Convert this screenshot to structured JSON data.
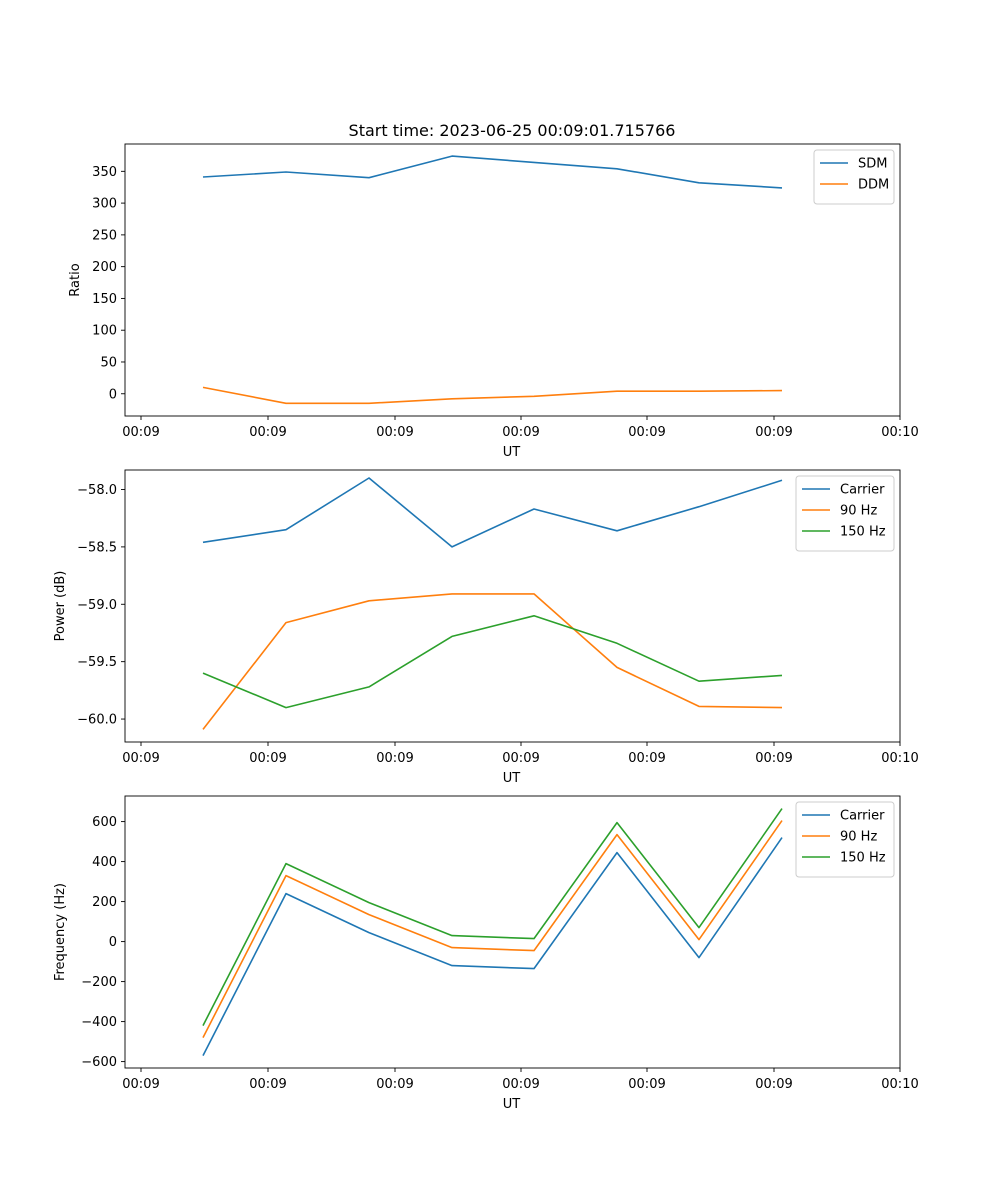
{
  "figure": {
    "title": "Start time: 2023-06-25 00:09:01.715766"
  },
  "chart_data": [
    {
      "type": "line",
      "xlabel": "UT",
      "ylabel": "Ratio",
      "x_tick_labels": [
        "00:09",
        "00:09",
        "00:09",
        "00:09",
        "00:09",
        "00:09",
        "00:09",
        "00:10"
      ],
      "y_ticks": [
        0,
        50,
        100,
        150,
        200,
        250,
        300,
        350
      ],
      "ylim": [
        -35,
        393
      ],
      "grid": false,
      "legend": "upper right",
      "series": [
        {
          "name": "SDM",
          "color": "#1f77b4",
          "values": [
            341,
            349,
            340,
            374,
            364,
            354,
            332,
            324
          ]
        },
        {
          "name": "DDM",
          "color": "#ff7f0e",
          "values": [
            10,
            -15,
            -15,
            -8,
            -4,
            4,
            4,
            5
          ]
        }
      ]
    },
    {
      "type": "line",
      "xlabel": "UT",
      "ylabel": "Power (dB)",
      "x_tick_labels": [
        "00:09",
        "00:09",
        "00:09",
        "00:09",
        "00:09",
        "00:09",
        "00:09",
        "00:10"
      ],
      "y_ticks": [
        -60.0,
        -59.5,
        -59.0,
        -58.5,
        -58.0
      ],
      "y_tick_labels": [
        "−60.0",
        "−59.5",
        "−59.0",
        "−58.5",
        "−58.0"
      ],
      "ylim": [
        -60.2,
        -57.83
      ],
      "grid": false,
      "legend": "upper right",
      "series": [
        {
          "name": "Carrier",
          "color": "#1f77b4",
          "values": [
            -58.46,
            -58.35,
            -57.9,
            -58.5,
            -58.17,
            -58.36,
            -58.15,
            -57.92
          ]
        },
        {
          "name": "90 Hz",
          "color": "#ff7f0e",
          "values": [
            -60.09,
            -59.16,
            -58.97,
            -58.91,
            -58.91,
            -59.55,
            -59.89,
            -59.9
          ]
        },
        {
          "name": "150 Hz",
          "color": "#2ca02c",
          "values": [
            -59.6,
            -59.9,
            -59.72,
            -59.28,
            -59.1,
            -59.34,
            -59.67,
            -59.62
          ]
        }
      ]
    },
    {
      "type": "line",
      "xlabel": "UT",
      "ylabel": "Frequency (Hz)",
      "x_tick_labels": [
        "00:09",
        "00:09",
        "00:09",
        "00:09",
        "00:09",
        "00:09",
        "00:09",
        "00:10"
      ],
      "y_ticks": [
        -600,
        -400,
        -200,
        0,
        200,
        400,
        600
      ],
      "y_tick_labels": [
        "−600",
        "−400",
        "−200",
        "0",
        "200",
        "400",
        "600"
      ],
      "ylim": [
        -632,
        728
      ],
      "grid": false,
      "legend": "upper right",
      "series": [
        {
          "name": "Carrier",
          "color": "#1f77b4",
          "values": [
            -570,
            240,
            45,
            -120,
            -135,
            445,
            -80,
            520
          ]
        },
        {
          "name": "90 Hz",
          "color": "#ff7f0e",
          "values": [
            -480,
            330,
            135,
            -30,
            -45,
            535,
            10,
            605
          ]
        },
        {
          "name": "150 Hz",
          "color": "#2ca02c",
          "values": [
            -420,
            390,
            195,
            30,
            15,
            595,
            70,
            665
          ]
        }
      ]
    }
  ]
}
